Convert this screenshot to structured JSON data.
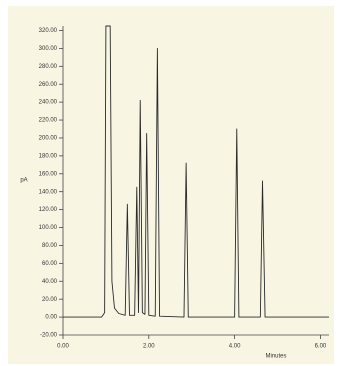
{
  "chart_data": {
    "type": "line",
    "xlabel": "Minutes",
    "ylabel": "pA",
    "x": [
      0,
      0.9,
      0.97,
      1.0,
      1.1,
      1.14,
      1.2,
      1.3,
      1.45,
      1.5,
      1.55,
      1.67,
      1.72,
      1.76,
      1.8,
      1.85,
      1.91,
      1.95,
      2.0,
      2.15,
      2.2,
      2.25,
      2.82,
      2.87,
      2.92,
      4.0,
      4.05,
      4.1,
      4.6,
      4.65,
      4.71,
      6.2
    ],
    "values": [
      0,
      0,
      5,
      325,
      325,
      40,
      10,
      4,
      2,
      126,
      2,
      2,
      145,
      5,
      242,
      5,
      3,
      205,
      2,
      1,
      300,
      1,
      0,
      172,
      0,
      0,
      210,
      0,
      0,
      152,
      0,
      0
    ],
    "color": "#2a2a2a",
    "xlim": [
      0,
      6.2
    ],
    "ylim": [
      -20,
      325
    ],
    "xticks": [
      {
        "value": 0,
        "label": "0.00"
      },
      {
        "value": 2,
        "label": "2.00"
      },
      {
        "value": 4,
        "label": "4.00"
      },
      {
        "value": 6,
        "label": "6.00"
      }
    ],
    "yticks": [
      {
        "value": -20,
        "label": "-20.00"
      },
      {
        "value": 0,
        "label": "0.00"
      },
      {
        "value": 20,
        "label": "20.00"
      },
      {
        "value": 40,
        "label": "40.00"
      },
      {
        "value": 60,
        "label": "60.00"
      },
      {
        "value": 80,
        "label": "80.00"
      },
      {
        "value": 100,
        "label": "100.00"
      },
      {
        "value": 120,
        "label": "120.00"
      },
      {
        "value": 140,
        "label": "140.00"
      },
      {
        "value": 160,
        "label": "160.00"
      },
      {
        "value": 180,
        "label": "180.00"
      },
      {
        "value": 200,
        "label": "200.00"
      },
      {
        "value": 220,
        "label": "220.00"
      },
      {
        "value": 240,
        "label": "240.00"
      },
      {
        "value": 260,
        "label": "260.00"
      },
      {
        "value": 280,
        "label": "280.00"
      },
      {
        "value": 300,
        "label": "300.00"
      },
      {
        "value": 320,
        "label": "320.00"
      }
    ]
  }
}
